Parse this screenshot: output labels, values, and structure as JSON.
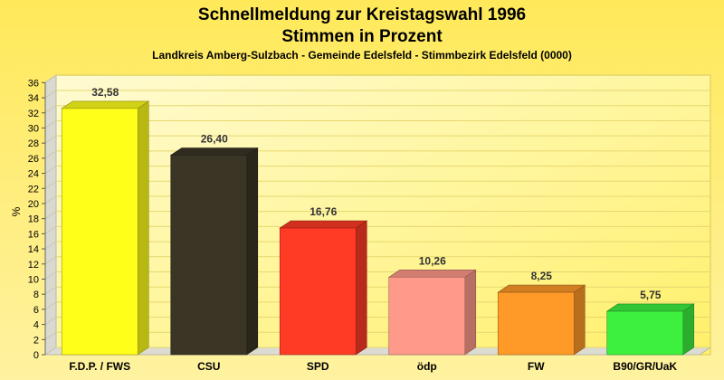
{
  "chart_data": {
    "type": "bar",
    "title": "Schnellmeldung zur Kreistagswahl 1996",
    "title2": "Stimmen in Prozent",
    "subtitle": "Landkreis Amberg-Sulzbach - Gemeinde Edelsfeld - Stimmbezirk Edelsfeld (0000)",
    "xlabel": "",
    "ylabel": "%",
    "ylim": [
      0,
      37
    ],
    "yticks": [
      0,
      2,
      4,
      6,
      8,
      10,
      12,
      14,
      16,
      18,
      20,
      22,
      24,
      26,
      28,
      30,
      32,
      34,
      36
    ],
    "categories": [
      "F.D.P. / FWS",
      "CSU",
      "SPD",
      "ödp",
      "FW",
      "B90/GR/UaK"
    ],
    "values": [
      32.58,
      26.4,
      16.76,
      10.26,
      8.25,
      5.75
    ],
    "value_labels": [
      "32,58",
      "26,40",
      "16,76",
      "10,26",
      "8,25",
      "5,75"
    ],
    "colors": [
      "#ffff1a",
      "#3a3524",
      "#ff3b26",
      "#ff9a8a",
      "#ff9a28",
      "#3ef03e"
    ],
    "grid": true,
    "background": "#ffee66"
  }
}
